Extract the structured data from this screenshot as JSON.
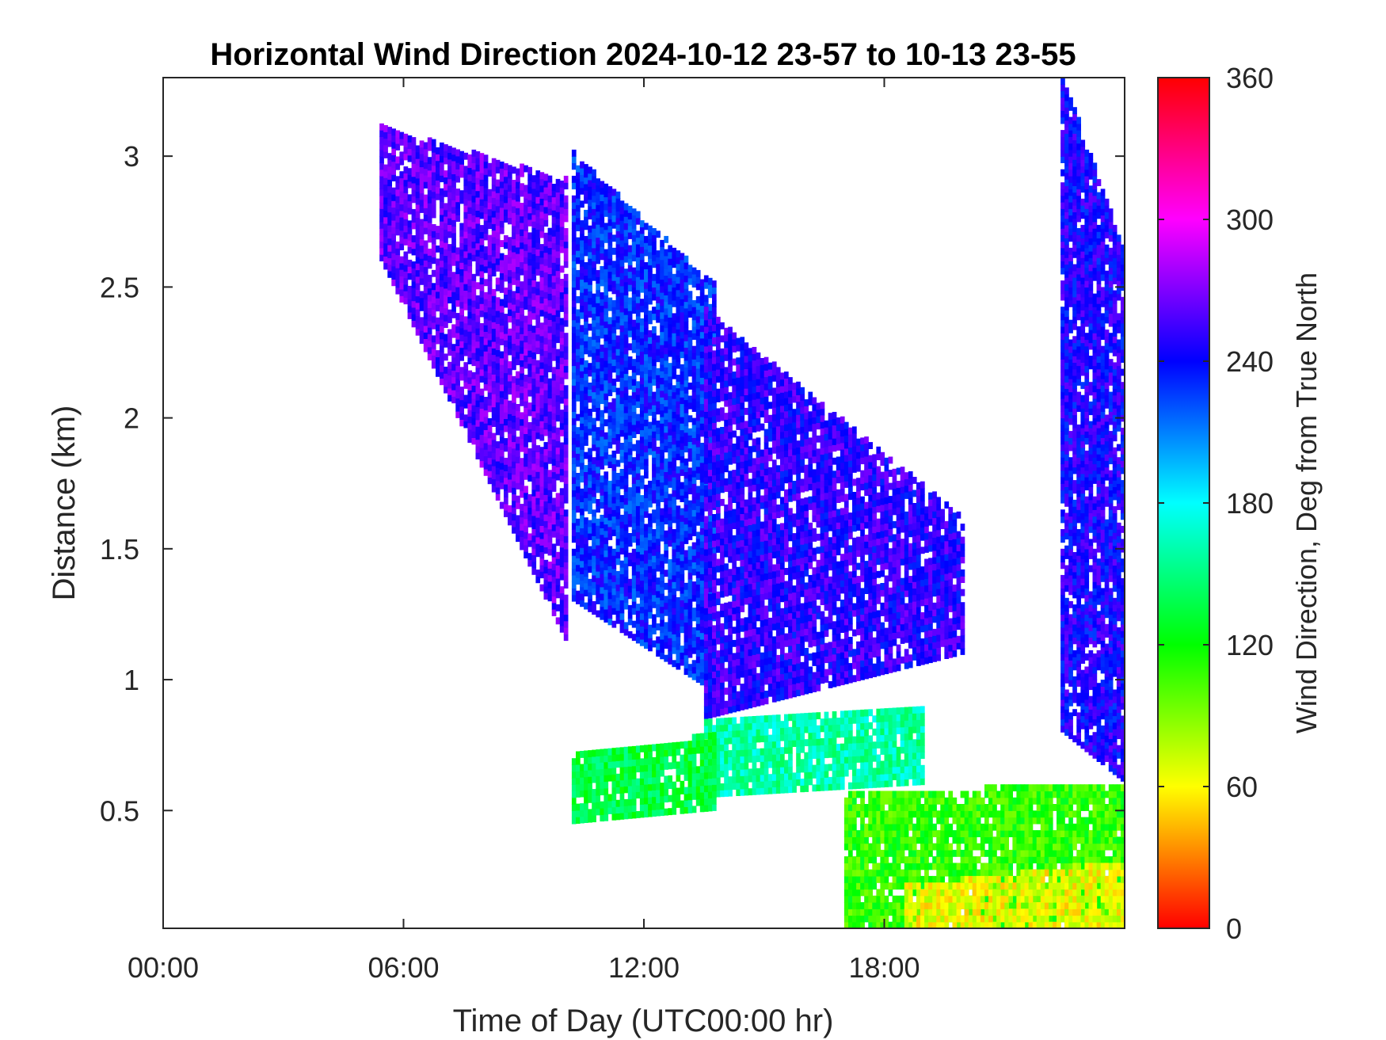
{
  "chart_data": {
    "type": "heatmap",
    "title": "Horizontal Wind Direction 2024-10-12 23-57 to 10-13 23-55",
    "xlabel": "Time of Day (UTC00:00 hr)",
    "ylabel": "Distance (km)",
    "x_ticks": [
      "00:00",
      "06:00",
      "12:00",
      "18:00"
    ],
    "x_tick_hours": [
      0,
      6,
      12,
      18
    ],
    "xlim_hours": [
      0,
      24
    ],
    "y_ticks": [
      "0.5",
      "1",
      "1.5",
      "2",
      "2.5",
      "3"
    ],
    "y_tick_values": [
      0.5,
      1,
      1.5,
      2,
      2.5,
      3
    ],
    "ylim_km": [
      0.05,
      3.3
    ],
    "colorbar": {
      "label": "Wind Direction, Deg from True North",
      "ticks": [
        "0",
        "60",
        "120",
        "180",
        "240",
        "300",
        "360"
      ],
      "tick_values": [
        0,
        60,
        120,
        180,
        240,
        300,
        360
      ],
      "range": [
        0,
        360
      ],
      "colormap": [
        "#ff0000",
        "#ffff00",
        "#00ff00",
        "#00ffff",
        "#0000ff",
        "#ff00ff",
        "#ff0000"
      ]
    },
    "regions": [
      {
        "name": "upper-layer-morning",
        "hours": [
          5.4,
          10.0
        ],
        "bottom_km": [
          2.6,
          1.15
        ],
        "top_km": [
          3.1,
          2.9
        ],
        "direction_deg": 262
      },
      {
        "name": "upper-layer-midday",
        "hours": [
          10.2,
          13.7
        ],
        "bottom_km": [
          1.3,
          0.95
        ],
        "top_km": [
          3.0,
          2.5
        ],
        "direction_deg": 232
      },
      {
        "name": "main-layer-afternoon",
        "hours": [
          13.5,
          20.0
        ],
        "bottom_km": [
          0.85,
          1.1
        ],
        "top_km": [
          2.4,
          1.6
        ],
        "direction_deg": 250
      },
      {
        "name": "upper-layer-evening",
        "hours": [
          22.4,
          24.0
        ],
        "bottom_km": [
          0.8,
          0.6
        ],
        "top_km": [
          3.3,
          2.6
        ],
        "direction_deg": 245
      },
      {
        "name": "shear-band-afternoon",
        "hours": [
          13.5,
          19.0
        ],
        "bottom_km": [
          0.55,
          0.6
        ],
        "top_km": [
          0.85,
          0.9
        ],
        "direction_deg": 160
      },
      {
        "name": "low-layer-midday",
        "hours": [
          10.2,
          13.7
        ],
        "bottom_km": [
          0.45,
          0.5
        ],
        "top_km": [
          0.7,
          0.78
        ],
        "direction_deg": 135
      },
      {
        "name": "surface-layer-evening",
        "hours": [
          17.0,
          24.0
        ],
        "bottom_km": [
          0.05,
          0.05
        ],
        "top_km": [
          0.55,
          0.6
        ],
        "direction_deg": 110
      },
      {
        "name": "surface-veer-evening",
        "hours": [
          18.5,
          24.0
        ],
        "bottom_km": [
          0.05,
          0.05
        ],
        "top_km": [
          0.2,
          0.3
        ],
        "direction_deg": 65
      }
    ]
  }
}
